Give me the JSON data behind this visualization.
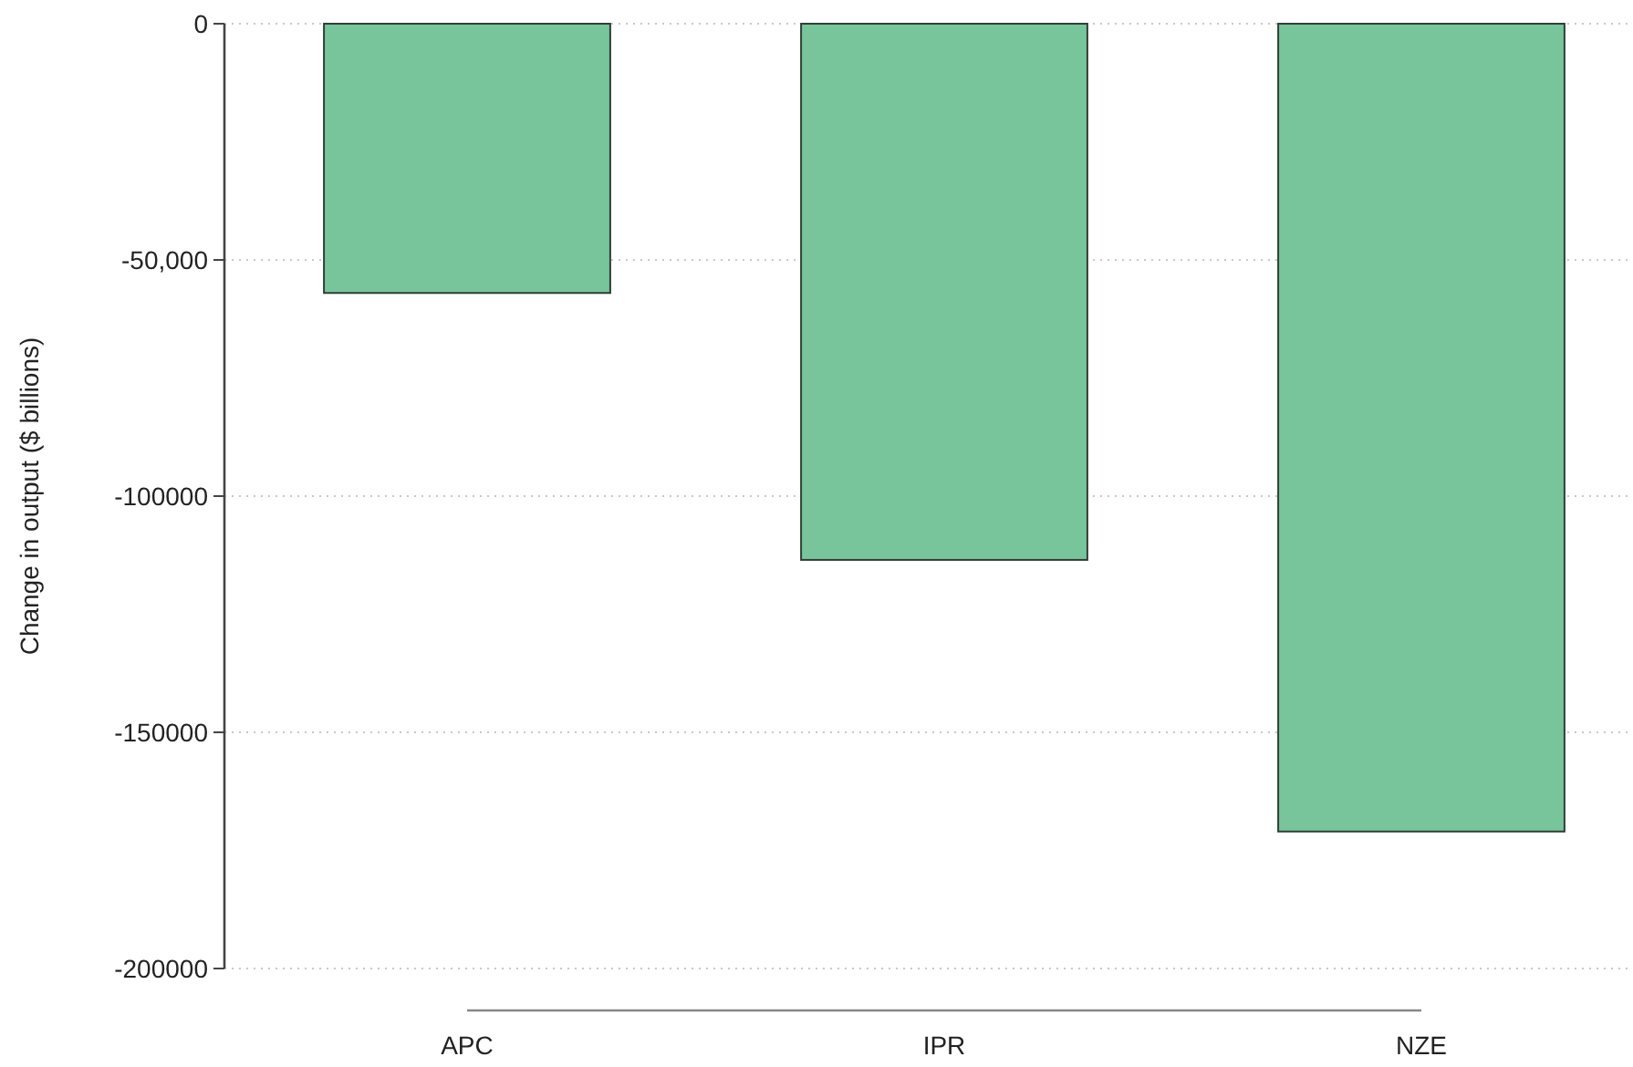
{
  "chart_data": {
    "type": "bar",
    "ylabel": "Change in output ($ billions)",
    "categories": [
      "APC",
      "IPR",
      "NZE"
    ],
    "values": [
      -57000,
      -113500,
      -171000
    ],
    "color": "#78c59b",
    "ylim": [
      -200000,
      0
    ],
    "yticks": [
      {
        "value": -200000,
        "label": "-200000"
      },
      {
        "value": -150000,
        "label": "-150000"
      },
      {
        "value": -100000,
        "label": "-100000"
      },
      {
        "value": -50000,
        "label": "-50,000"
      },
      {
        "value": 0,
        "label": "0"
      }
    ],
    "grid": "y"
  }
}
